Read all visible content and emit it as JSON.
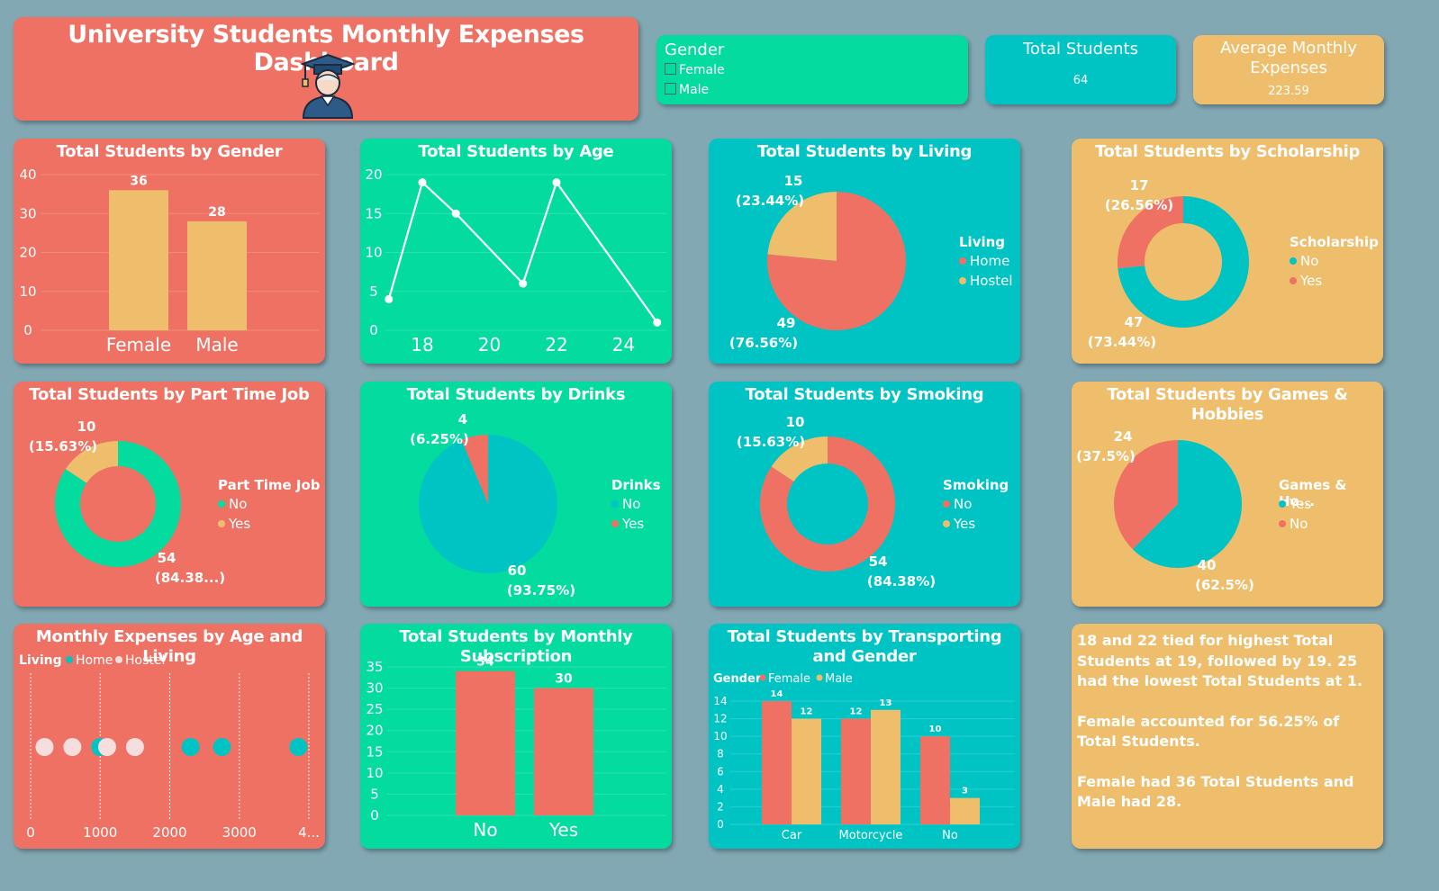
{
  "header": {
    "title": "University Students Monthly Expenses Dashboard",
    "logo_icon": "graduate-icon"
  },
  "slicer": {
    "title": "Gender",
    "options": [
      "Female",
      "Male"
    ]
  },
  "kpis": {
    "total_students": {
      "label": "Total Students",
      "value": "64"
    },
    "avg_expenses": {
      "label": "Average Monthly Expenses",
      "value": "223.59"
    }
  },
  "colors": {
    "red": "#ef7163",
    "yellow": "#efbe6d",
    "teal": "#00c4c4",
    "green": "#03db9f",
    "white": "#ffffff"
  },
  "chart_data": [
    {
      "id": "gender",
      "type": "bar",
      "title": "Total Students by Gender",
      "categories": [
        "Female",
        "Male"
      ],
      "values": [
        36,
        28
      ],
      "ylim": [
        0,
        40
      ],
      "yticks": [
        0,
        10,
        20,
        30,
        40
      ]
    },
    {
      "id": "age",
      "type": "line",
      "title": "Total Students by Age",
      "x": [
        17,
        18,
        19,
        21,
        22,
        25
      ],
      "values": [
        4,
        19,
        15,
        6,
        19,
        1
      ],
      "xticks": [
        18,
        20,
        22,
        24
      ],
      "ylim": [
        0,
        20
      ],
      "yticks": [
        0,
        5,
        10,
        15,
        20
      ]
    },
    {
      "id": "living",
      "type": "pie",
      "title": "Total Students by Living",
      "legend_title": "Living",
      "slices": [
        {
          "name": "Home",
          "value": 49,
          "label": [
            "49",
            "(76.56%)"
          ]
        },
        {
          "name": "Hostel",
          "value": 15,
          "label": [
            "15",
            "(23.44%)"
          ]
        }
      ]
    },
    {
      "id": "scholarship",
      "type": "pie",
      "donut": true,
      "title": "Total Students by Scholarship",
      "legend_title": "Scholarship",
      "slices": [
        {
          "name": "No",
          "value": 47,
          "label": [
            "47",
            "(73.44%)"
          ]
        },
        {
          "name": "Yes",
          "value": 17,
          "label": [
            "17",
            "(26.56%)"
          ]
        }
      ]
    },
    {
      "id": "parttime",
      "type": "pie",
      "donut": true,
      "title": "Total Students by Part Time Job",
      "legend_title": "Part Time Job",
      "slices": [
        {
          "name": "No",
          "value": 54,
          "label": [
            "54",
            "(84.38...)"
          ]
        },
        {
          "name": "Yes",
          "value": 10,
          "label": [
            "10",
            "(15.63%)"
          ]
        }
      ]
    },
    {
      "id": "drinks",
      "type": "pie",
      "title": "Total Students by Drinks",
      "legend_title": "Drinks",
      "slices": [
        {
          "name": "No",
          "value": 60,
          "label": [
            "60",
            "(93.75%)"
          ]
        },
        {
          "name": "Yes",
          "value": 4,
          "label": [
            "4",
            "(6.25%)"
          ]
        }
      ]
    },
    {
      "id": "smoking",
      "type": "pie",
      "donut": true,
      "title": "Total Students by Smoking",
      "legend_title": "Smoking",
      "slices": [
        {
          "name": "No",
          "value": 54,
          "label": [
            "54",
            "(84.38%)"
          ]
        },
        {
          "name": "Yes",
          "value": 10,
          "label": [
            "10",
            "(15.63%)"
          ]
        }
      ]
    },
    {
      "id": "games",
      "type": "pie",
      "title": "Total Students by Games & Hobbies",
      "legend_title": "Games & Ho...",
      "slices": [
        {
          "name": "Yes",
          "value": 40,
          "label": [
            "40",
            "(62.5%)"
          ]
        },
        {
          "name": "No",
          "value": 24,
          "label": [
            "24",
            "(37.5%)"
          ]
        }
      ]
    },
    {
      "id": "expenses",
      "type": "scatter",
      "title": "Monthly Expenses by Age and Living",
      "legend_title": "Living",
      "series": [
        {
          "name": "Home",
          "values": [
            2300,
            2750,
            3850,
            1000
          ]
        },
        {
          "name": "Hostel",
          "values": [
            200,
            600,
            1100,
            1500
          ]
        }
      ],
      "xticks": [
        "0",
        "1000",
        "2000",
        "3000",
        "4..."
      ],
      "xlim": [
        0,
        4000
      ]
    },
    {
      "id": "subscription",
      "type": "bar",
      "title": "Total Students by Monthly Subscription",
      "categories": [
        "No",
        "Yes"
      ],
      "values": [
        34,
        30
      ],
      "ylim": [
        0,
        35
      ],
      "yticks": [
        0,
        5,
        10,
        15,
        20,
        25,
        30,
        35
      ]
    },
    {
      "id": "transport",
      "type": "bar",
      "title": "Total Students by Transporting and Gender",
      "legend_title": "Gender",
      "categories": [
        "Car",
        "Motorcycle",
        "No"
      ],
      "series": [
        {
          "name": "Female",
          "values": [
            14,
            12,
            10
          ]
        },
        {
          "name": "Male",
          "values": [
            12,
            13,
            3
          ]
        }
      ],
      "ylim": [
        0,
        14
      ],
      "yticks": [
        0,
        2,
        4,
        6,
        8,
        10,
        12,
        14
      ]
    }
  ],
  "insights": [
    "18 and 22 tied for highest Total Students at 19, followed by 19. 25 had the lowest Total Students at 1.",
    "Female accounted for 56.25% of Total Students.",
    "Female had 36 Total Students and Male had 28."
  ]
}
